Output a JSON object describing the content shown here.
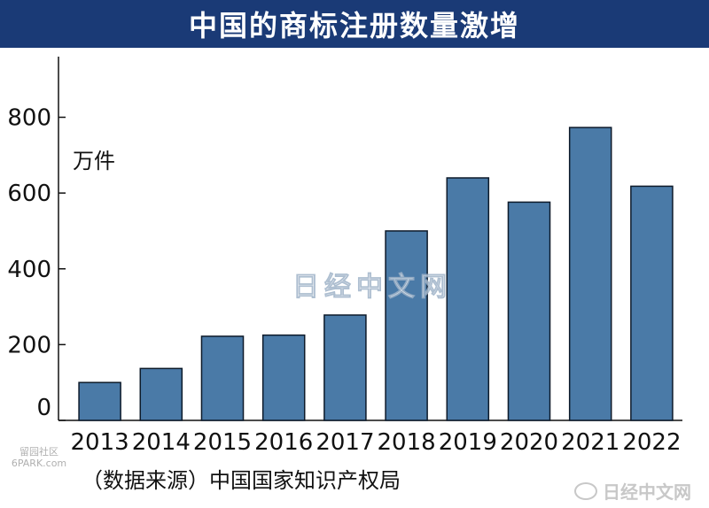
{
  "title": "中国的商标注册数量激增",
  "source": "（数据来源）中国国家知识产权局",
  "watermarks": {
    "center": "日经中文网",
    "corner_line1": "留园社区",
    "corner_line2": "6PARK.com",
    "bottom_right": "日经中文网"
  },
  "colors": {
    "bar": "#4a7aa7",
    "bar_stroke": "#0d1a2a",
    "title_bg": "#1a3a76"
  },
  "chart_data": {
    "type": "bar",
    "title": "中国的商标注册数量激增",
    "unit_label": "万件",
    "categories": [
      "2013",
      "2014",
      "2015",
      "2016",
      "2017",
      "2018",
      "2019",
      "2020",
      "2021",
      "2022"
    ],
    "values": [
      100,
      137,
      222,
      225,
      278,
      500,
      640,
      576,
      773,
      618
    ],
    "yticks": [
      0,
      200,
      400,
      600,
      800
    ],
    "ylim": [
      0,
      960
    ],
    "grid": false
  }
}
